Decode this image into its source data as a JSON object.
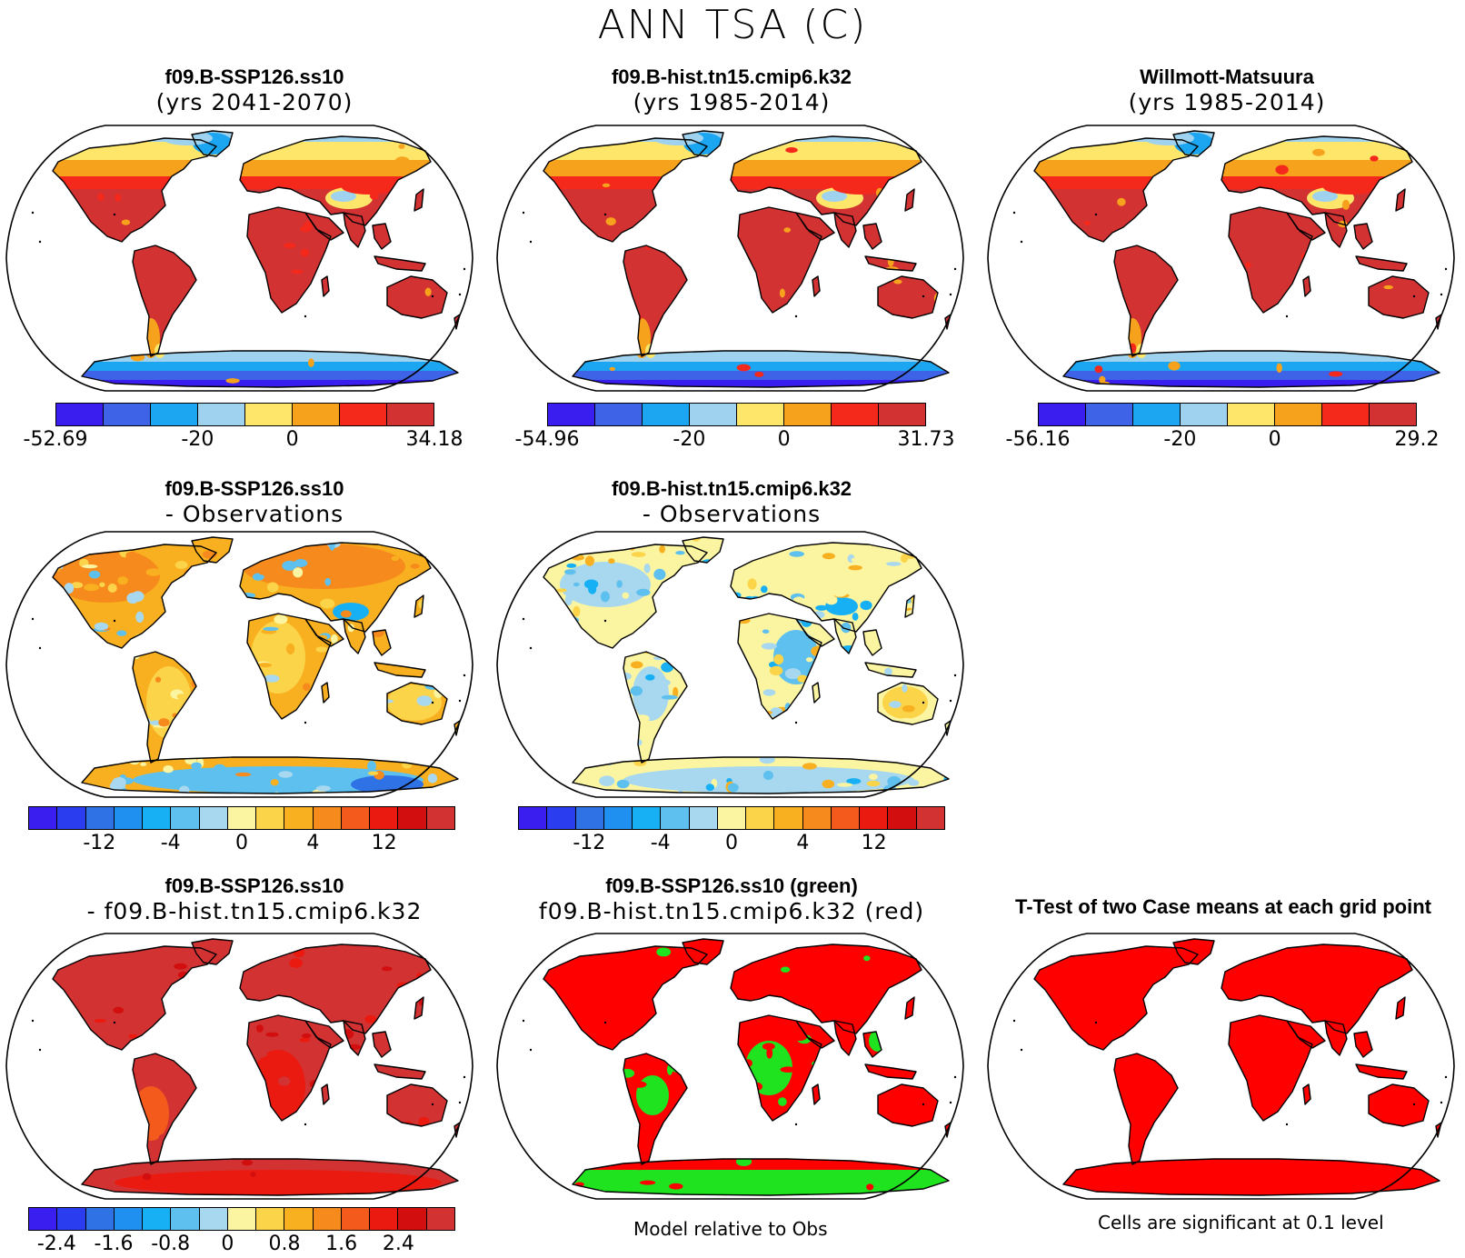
{
  "title": "ANN TSA (C)",
  "colors": {
    "abs": [
      "#3a1ef0",
      "#3e63e6",
      "#1ca6f2",
      "#9fd2ee",
      "#fde66a",
      "#f7a21c",
      "#f5281c",
      "#d33232"
    ],
    "diff": [
      "#3a1ef0",
      "#2a3ef0",
      "#2f72e6",
      "#1f8ff0",
      "#18b0f5",
      "#5ec0ee",
      "#a8d8ef",
      "#fbf4a0",
      "#fbd44a",
      "#f8b020",
      "#f78a1c",
      "#f45a1c",
      "#ea1a10",
      "#d20e0e",
      "#d33232"
    ],
    "land_red": "#d33232",
    "sig_red": "#ff0000",
    "green": "#1ee31e",
    "ocean": "#ffffff"
  },
  "panels": {
    "p1": {
      "title": "f09.B-SSP126.ss10",
      "subtitle": "(yrs 2041-2070)"
    },
    "p2": {
      "title": "f09.B-hist.tn15.cmip6.k32",
      "subtitle": "(yrs 1985-2014)"
    },
    "p3": {
      "title": "Willmott-Matsuura",
      "subtitle": "(yrs 1985-2014)"
    },
    "p4": {
      "title": "f09.B-SSP126.ss10",
      "subtitle": "- Observations"
    },
    "p5": {
      "title": "f09.B-hist.tn15.cmip6.k32",
      "subtitle": "- Observations"
    },
    "p7": {
      "title": "f09.B-SSP126.ss10",
      "subtitle": "- f09.B-hist.tn15.cmip6.k32"
    },
    "p8": {
      "title": "f09.B-SSP126.ss10 (green)",
      "subtitle": "f09.B-hist.tn15.cmip6.k32 (red)"
    },
    "p9": {
      "title": "T-Test of two Case means at each grid point"
    }
  },
  "colorbars": {
    "cb1": {
      "labels": [
        "-52.69",
        "-20",
        "0",
        "34.18"
      ]
    },
    "cb2": {
      "labels": [
        "-54.96",
        "-20",
        "0",
        "31.73"
      ]
    },
    "cb3": {
      "labels": [
        "-56.16",
        "-20",
        "0",
        "29.2"
      ]
    },
    "cb4": {
      "labels": [
        "-12",
        "-4",
        "0",
        "4",
        "12"
      ]
    },
    "cb5": {
      "labels": [
        "-12",
        "-4",
        "0",
        "4",
        "12"
      ]
    },
    "cb7": {
      "labels": [
        "-2.4",
        "-1.6",
        "-0.8",
        "0",
        "0.8",
        "1.6",
        "2.4"
      ]
    }
  },
  "footnotes": {
    "model_rel": "Model relative to Obs",
    "significance": "Cells are significant at 0.1 level"
  }
}
